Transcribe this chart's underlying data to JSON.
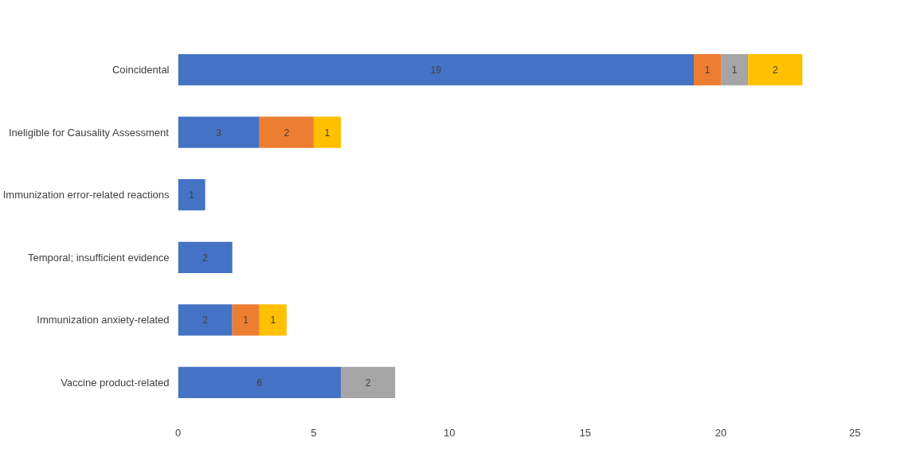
{
  "chart_data": {
    "type": "bar",
    "orientation": "horizontal",
    "stacked": true,
    "data_labels": true,
    "grid": false,
    "categories": [
      "Coincidental",
      "Ineligible for Causality Assessment",
      "Immunization error-related reactions",
      "Temporal; insufficient evidence",
      "Immunization anxiety-related",
      "Vaccine product-related"
    ],
    "series": [
      {
        "color": "#4472c4",
        "values": [
          19,
          3,
          1,
          2,
          2,
          6
        ]
      },
      {
        "color": "#ed7d31",
        "values": [
          1,
          2,
          null,
          null,
          1,
          null
        ]
      },
      {
        "color": "#a5a5a5",
        "values": [
          1,
          null,
          null,
          null,
          null,
          2
        ]
      },
      {
        "color": "#ffc000",
        "values": [
          2,
          1,
          null,
          null,
          1,
          null
        ]
      }
    ],
    "xlim": [
      0,
      25
    ],
    "xticks": [
      0,
      5,
      10,
      15,
      20,
      25
    ]
  }
}
